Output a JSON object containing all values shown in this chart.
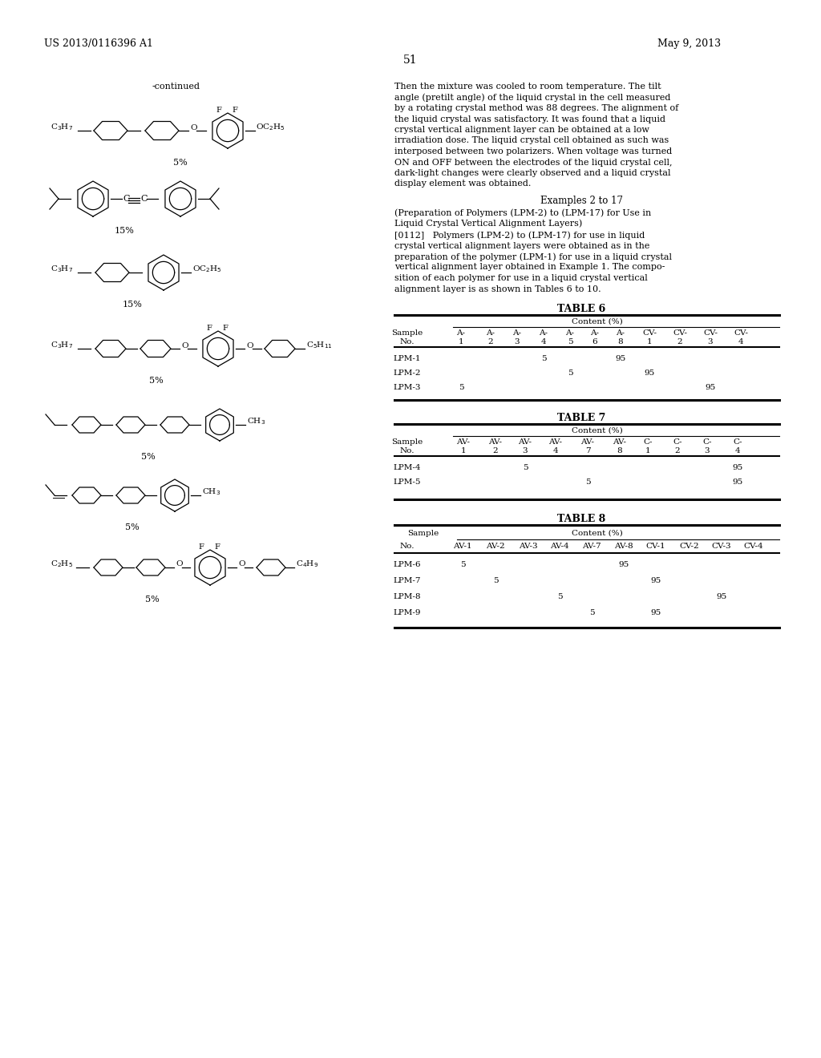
{
  "page_number": "51",
  "patent_number": "US 2013/0116396 A1",
  "patent_date": "May 9, 2013",
  "background_color": "#ffffff",
  "continued_label": "-continued",
  "right_text_lines": [
    "Then the mixture was cooled to room temperature. The tilt",
    "angle (pretilt angle) of the liquid crystal in the cell measured",
    "by a rotating crystal method was 88 degrees. The alignment of",
    "the liquid crystal was satisfactory. It was found that a liquid",
    "crystal vertical alignment layer can be obtained at a low",
    "irradiation dose. The liquid crystal cell obtained as such was",
    "interposed between two polarizers. When voltage was turned",
    "ON and OFF between the electrodes of the liquid crystal cell,",
    "dark-light changes were clearly observed and a liquid crystal",
    "display element was obtained."
  ],
  "examples_header": "Examples 2 to 17",
  "prep_line1": "(Preparation of Polymers (LPM-2) to (LPM-17) for Use in",
  "prep_line2": "Liquid Crystal Vertical Alignment Layers)",
  "para_lines": [
    "[0112]   Polymers (LPM-2) to (LPM-17) for use in liquid",
    "crystal vertical alignment layers were obtained as in the",
    "preparation of the polymer (LPM-1) for use in a liquid crystal",
    "vertical alignment layer obtained in Example 1. The compo-",
    "sition of each polymer for use in a liquid crystal vertical",
    "alignment layer is as shown in Tables 6 to 10."
  ],
  "table6_title": "TABLE 6",
  "table6_content": "Content (%)",
  "table6_col1_heads": [
    "Sample",
    "A-",
    "A-",
    "A-",
    "A-",
    "A-",
    "A-",
    "A-",
    "CV-",
    "CV-",
    "CV-",
    "CV-"
  ],
  "table6_col2_heads": [
    "No.",
    "1",
    "2",
    "3",
    "4",
    "5",
    "6",
    "8",
    "1",
    "2",
    "3",
    "4"
  ],
  "table6_rows": [
    [
      "LPM-1",
      "",
      "",
      "",
      "5",
      "",
      "",
      "95",
      "",
      "",
      ""
    ],
    [
      "LPM-2",
      "",
      "",
      "",
      "",
      "5",
      "",
      "",
      "95",
      "",
      ""
    ],
    [
      "LPM-3",
      "5",
      "",
      "",
      "",
      "",
      "",
      "",
      "",
      "",
      "95"
    ]
  ],
  "table7_title": "TABLE 7",
  "table7_content": "Content (%)",
  "table7_col1_heads": [
    "Sample",
    "AV-",
    "AV-",
    "AV-",
    "AV-",
    "AV-",
    "AV-",
    "C-",
    "C-",
    "C-",
    "C-"
  ],
  "table7_col2_heads": [
    "No.",
    "1",
    "2",
    "3",
    "4",
    "7",
    "8",
    "1",
    "2",
    "3",
    "4"
  ],
  "table7_rows": [
    [
      "LPM-4",
      "",
      "",
      "5",
      "",
      "",
      "",
      "",
      "",
      "",
      "95"
    ],
    [
      "LPM-5",
      "",
      "",
      "",
      "",
      "5",
      "",
      "",
      "",
      "",
      "95"
    ]
  ],
  "table8_title": "TABLE 8",
  "table8_content": "Content (%)",
  "table8_headers": [
    "No.",
    "AV-1",
    "AV-2",
    "AV-3",
    "AV-4",
    "AV-7",
    "AV-8",
    "CV-1",
    "CV-2",
    "CV-3",
    "CV-4"
  ],
  "table8_rows": [
    [
      "LPM-6",
      "5",
      "",
      "",
      "",
      "",
      "95",
      "",
      "",
      ""
    ],
    [
      "LPM-7",
      "",
      "5",
      "",
      "",
      "",
      "",
      "95",
      "",
      ""
    ],
    [
      "LPM-8",
      "",
      "",
      "",
      "5",
      "",
      "",
      "",
      "",
      "95"
    ],
    [
      "LPM-9",
      "",
      "",
      "",
      "",
      "5",
      "",
      "95",
      "",
      ""
    ]
  ],
  "struct_labels": [
    "5%",
    "15%",
    "15%",
    "5%",
    "5%",
    "5%",
    "5%"
  ]
}
